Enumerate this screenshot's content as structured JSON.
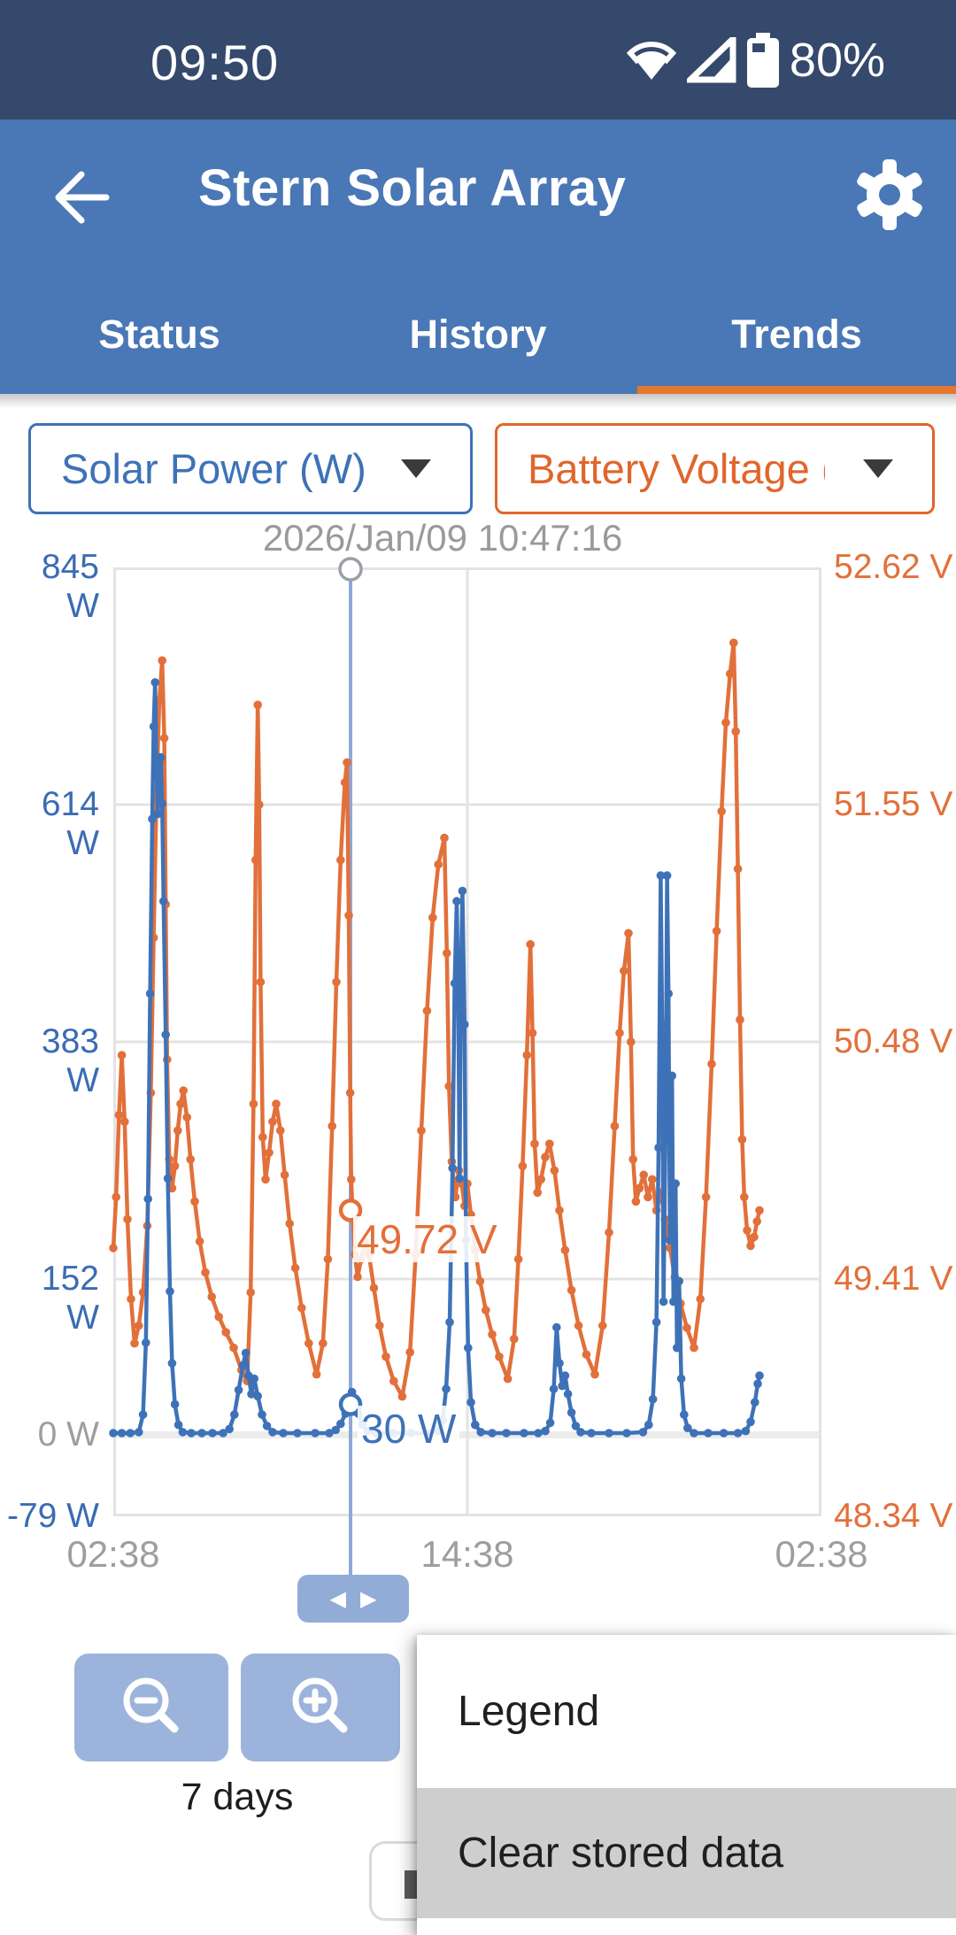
{
  "status_bar": {
    "time": "09:50",
    "battery_percent": "80%"
  },
  "header": {
    "title": "Stern Solar Array"
  },
  "tabs": [
    {
      "label": "Status",
      "active": false
    },
    {
      "label": "History",
      "active": false
    },
    {
      "label": "Trends",
      "active": true
    }
  ],
  "selectors": {
    "left": {
      "label": "Solar Power (W)"
    },
    "right": {
      "label": "Battery Voltage (…"
    }
  },
  "theme": {
    "status_bar_bg": "#35496d",
    "app_bar_bg": "#4a77b5",
    "accent_orange": "#e4772e",
    "control_blue": "#9cb4db",
    "highlight_gray": "#cecece"
  },
  "footer": {
    "range_label": "7 days"
  },
  "menu": {
    "items": [
      {
        "label": "Legend",
        "highlighted": false
      },
      {
        "label": "Clear stored data",
        "highlighted": true
      }
    ]
  },
  "chart_data": {
    "type": "line",
    "x_axis": {
      "ticks": [
        "02:38",
        "14:38",
        "02:38"
      ],
      "grid": true
    },
    "left_axis": {
      "label": "Solar Power (W)",
      "color": "#3a6cb4",
      "range": [
        -79,
        845
      ],
      "ticks": [
        "845 W",
        "614 W",
        "383 W",
        "152 W",
        "-79 W"
      ],
      "zero_label": "0 W"
    },
    "right_axis": {
      "label": "Battery Voltage (V)",
      "color": "#e2703a",
      "range": [
        48.34,
        52.62
      ],
      "ticks": [
        "52.62 V",
        "51.55 V",
        "50.48 V",
        "49.41 V",
        "48.34 V"
      ]
    },
    "cursor": {
      "x_frac": 0.335,
      "datetime": "2026/Jan/09 10:47:16",
      "power_w": 30,
      "power_label": "30 W",
      "voltage_v": 49.72,
      "voltage_label": "49.72 V",
      "line_color": "#8ea8d8"
    },
    "series": [
      {
        "name": "Battery Voltage (V)",
        "axis": "right",
        "color": "#e2703a",
        "points": [
          [
            0.0,
            49.55
          ],
          [
            0.004,
            49.78
          ],
          [
            0.008,
            50.15
          ],
          [
            0.012,
            50.42
          ],
          [
            0.016,
            50.12
          ],
          [
            0.02,
            49.68
          ],
          [
            0.025,
            49.32
          ],
          [
            0.03,
            49.12
          ],
          [
            0.036,
            49.2
          ],
          [
            0.042,
            49.35
          ],
          [
            0.048,
            49.65
          ],
          [
            0.053,
            50.25
          ],
          [
            0.057,
            50.95
          ],
          [
            0.061,
            51.6
          ],
          [
            0.065,
            52.02
          ],
          [
            0.069,
            52.2
          ],
          [
            0.072,
            51.85
          ],
          [
            0.074,
            51.1
          ],
          [
            0.076,
            50.4
          ],
          [
            0.079,
            49.95
          ],
          [
            0.083,
            49.82
          ],
          [
            0.087,
            49.92
          ],
          [
            0.091,
            50.08
          ],
          [
            0.095,
            50.2
          ],
          [
            0.099,
            50.26
          ],
          [
            0.104,
            50.14
          ],
          [
            0.109,
            49.95
          ],
          [
            0.115,
            49.76
          ],
          [
            0.122,
            49.58
          ],
          [
            0.13,
            49.44
          ],
          [
            0.139,
            49.33
          ],
          [
            0.149,
            49.24
          ],
          [
            0.159,
            49.17
          ],
          [
            0.17,
            49.1
          ],
          [
            0.181,
            49.0
          ],
          [
            0.189,
            48.95
          ],
          [
            0.194,
            49.35
          ],
          [
            0.198,
            50.2
          ],
          [
            0.201,
            51.3
          ],
          [
            0.204,
            52.0
          ],
          [
            0.206,
            51.55
          ],
          [
            0.208,
            50.75
          ],
          [
            0.211,
            50.05
          ],
          [
            0.215,
            49.86
          ],
          [
            0.22,
            49.98
          ],
          [
            0.225,
            50.12
          ],
          [
            0.23,
            50.2
          ],
          [
            0.236,
            50.08
          ],
          [
            0.242,
            49.88
          ],
          [
            0.249,
            49.66
          ],
          [
            0.257,
            49.46
          ],
          [
            0.266,
            49.28
          ],
          [
            0.276,
            49.12
          ],
          [
            0.287,
            48.98
          ],
          [
            0.296,
            49.12
          ],
          [
            0.303,
            49.5
          ],
          [
            0.309,
            50.1
          ],
          [
            0.315,
            50.75
          ],
          [
            0.321,
            51.3
          ],
          [
            0.327,
            51.65
          ],
          [
            0.33,
            51.74
          ],
          [
            0.3325,
            51.05
          ],
          [
            0.3345,
            50.25
          ],
          [
            0.336,
            49.86
          ],
          [
            0.338,
            49.7
          ],
          [
            0.341,
            49.52
          ],
          [
            0.345,
            49.42
          ],
          [
            0.35,
            49.5
          ],
          [
            0.355,
            49.58
          ],
          [
            0.361,
            49.52
          ],
          [
            0.368,
            49.37
          ],
          [
            0.376,
            49.2
          ],
          [
            0.385,
            49.06
          ],
          [
            0.396,
            48.95
          ],
          [
            0.408,
            48.88
          ],
          [
            0.419,
            49.08
          ],
          [
            0.427,
            49.52
          ],
          [
            0.435,
            50.08
          ],
          [
            0.443,
            50.62
          ],
          [
            0.451,
            51.04
          ],
          [
            0.459,
            51.28
          ],
          [
            0.4675,
            51.4
          ],
          [
            0.471,
            50.88
          ],
          [
            0.474,
            50.28
          ],
          [
            0.478,
            49.94
          ],
          [
            0.483,
            49.78
          ],
          [
            0.488,
            49.9
          ],
          [
            0.492,
            49.84
          ],
          [
            0.496,
            49.74
          ],
          [
            0.5,
            49.84
          ],
          [
            0.505,
            49.7
          ],
          [
            0.511,
            49.54
          ],
          [
            0.518,
            49.4
          ],
          [
            0.526,
            49.27
          ],
          [
            0.535,
            49.16
          ],
          [
            0.545,
            49.06
          ],
          [
            0.557,
            48.96
          ],
          [
            0.566,
            49.14
          ],
          [
            0.572,
            49.5
          ],
          [
            0.578,
            49.92
          ],
          [
            0.584,
            50.42
          ],
          [
            0.589,
            50.92
          ],
          [
            0.592,
            50.52
          ],
          [
            0.595,
            50.02
          ],
          [
            0.599,
            49.8
          ],
          [
            0.604,
            49.86
          ],
          [
            0.61,
            49.96
          ],
          [
            0.616,
            50.02
          ],
          [
            0.623,
            49.9
          ],
          [
            0.63,
            49.72
          ],
          [
            0.638,
            49.54
          ],
          [
            0.647,
            49.36
          ],
          [
            0.657,
            49.2
          ],
          [
            0.668,
            49.07
          ],
          [
            0.68,
            48.98
          ],
          [
            0.691,
            49.2
          ],
          [
            0.7,
            49.62
          ],
          [
            0.708,
            50.1
          ],
          [
            0.715,
            50.52
          ],
          [
            0.721,
            50.8
          ],
          [
            0.7275,
            50.97
          ],
          [
            0.731,
            50.48
          ],
          [
            0.734,
            49.95
          ],
          [
            0.738,
            49.76
          ],
          [
            0.743,
            49.82
          ],
          [
            0.749,
            49.88
          ],
          [
            0.755,
            49.78
          ],
          [
            0.761,
            49.86
          ],
          [
            0.767,
            49.72
          ],
          [
            0.773,
            49.8
          ],
          [
            0.779,
            49.68
          ],
          [
            0.786,
            49.55
          ],
          [
            0.793,
            49.42
          ],
          [
            0.801,
            49.3
          ],
          [
            0.81,
            49.19
          ],
          [
            0.82,
            49.1
          ],
          [
            0.829,
            49.32
          ],
          [
            0.837,
            49.78
          ],
          [
            0.845,
            50.38
          ],
          [
            0.852,
            50.98
          ],
          [
            0.859,
            51.52
          ],
          [
            0.865,
            51.92
          ],
          [
            0.871,
            52.14
          ],
          [
            0.876,
            52.28
          ],
          [
            0.879,
            51.88
          ],
          [
            0.882,
            51.26
          ],
          [
            0.885,
            50.58
          ],
          [
            0.888,
            50.04
          ],
          [
            0.891,
            49.78
          ],
          [
            0.895,
            49.63
          ],
          [
            0.9,
            49.56
          ],
          [
            0.905,
            49.6
          ],
          [
            0.909,
            49.67
          ],
          [
            0.9125,
            49.72
          ]
        ]
      },
      {
        "name": "Solar Power (W)",
        "axis": "left",
        "color": "#3e72b8",
        "points": [
          [
            0.0,
            2
          ],
          [
            0.012,
            2
          ],
          [
            0.024,
            2
          ],
          [
            0.036,
            3
          ],
          [
            0.042,
            20
          ],
          [
            0.046,
            90
          ],
          [
            0.049,
            230
          ],
          [
            0.052,
            430
          ],
          [
            0.055,
            600
          ],
          [
            0.057,
            690
          ],
          [
            0.059,
            733
          ],
          [
            0.061,
            650
          ],
          [
            0.063,
            605
          ],
          [
            0.065,
            655
          ],
          [
            0.067,
            660
          ],
          [
            0.069,
            615
          ],
          [
            0.071,
            520
          ],
          [
            0.074,
            390
          ],
          [
            0.077,
            250
          ],
          [
            0.08,
            140
          ],
          [
            0.083,
            70
          ],
          [
            0.087,
            30
          ],
          [
            0.092,
            10
          ],
          [
            0.098,
            3
          ],
          [
            0.11,
            2
          ],
          [
            0.125,
            2
          ],
          [
            0.14,
            2
          ],
          [
            0.155,
            2
          ],
          [
            0.164,
            6
          ],
          [
            0.171,
            20
          ],
          [
            0.177,
            44
          ],
          [
            0.183,
            68
          ],
          [
            0.187,
            80
          ],
          [
            0.191,
            58
          ],
          [
            0.195,
            40
          ],
          [
            0.199,
            55
          ],
          [
            0.204,
            38
          ],
          [
            0.21,
            20
          ],
          [
            0.217,
            9
          ],
          [
            0.225,
            3
          ],
          [
            0.24,
            2
          ],
          [
            0.26,
            2
          ],
          [
            0.285,
            2
          ],
          [
            0.305,
            2
          ],
          [
            0.314,
            5
          ],
          [
            0.321,
            11
          ],
          [
            0.328,
            21
          ],
          [
            0.333,
            32
          ],
          [
            0.337,
            42
          ],
          [
            0.341,
            33
          ],
          [
            0.346,
            21
          ],
          [
            0.352,
            10
          ],
          [
            0.359,
            4
          ],
          [
            0.372,
            2
          ],
          [
            0.395,
            2
          ],
          [
            0.42,
            2
          ],
          [
            0.445,
            2
          ],
          [
            0.458,
            4
          ],
          [
            0.465,
            14
          ],
          [
            0.47,
            45
          ],
          [
            0.475,
            110
          ],
          [
            0.479,
            260
          ],
          [
            0.482,
            440
          ],
          [
            0.485,
            520
          ],
          [
            0.487,
            430
          ],
          [
            0.489,
            250
          ],
          [
            0.491,
            450
          ],
          [
            0.493,
            530
          ],
          [
            0.496,
            400
          ],
          [
            0.498,
            190
          ],
          [
            0.501,
            85
          ],
          [
            0.505,
            32
          ],
          [
            0.511,
            10
          ],
          [
            0.519,
            3
          ],
          [
            0.535,
            2
          ],
          [
            0.555,
            2
          ],
          [
            0.58,
            2
          ],
          [
            0.6,
            2
          ],
          [
            0.61,
            4
          ],
          [
            0.617,
            12
          ],
          [
            0.622,
            45
          ],
          [
            0.626,
            105
          ],
          [
            0.63,
            70
          ],
          [
            0.634,
            48
          ],
          [
            0.638,
            58
          ],
          [
            0.642,
            40
          ],
          [
            0.647,
            22
          ],
          [
            0.653,
            9
          ],
          [
            0.66,
            3
          ],
          [
            0.675,
            2
          ],
          [
            0.7,
            2
          ],
          [
            0.725,
            2
          ],
          [
            0.748,
            3
          ],
          [
            0.756,
            10
          ],
          [
            0.762,
            35
          ],
          [
            0.767,
            110
          ],
          [
            0.77,
            280
          ],
          [
            0.773,
            545
          ],
          [
            0.775,
            400
          ],
          [
            0.777,
            130
          ],
          [
            0.78,
            310
          ],
          [
            0.782,
            545
          ],
          [
            0.784,
            430
          ],
          [
            0.786,
            190
          ],
          [
            0.789,
            350
          ],
          [
            0.791,
            130
          ],
          [
            0.794,
            245
          ],
          [
            0.796,
            85
          ],
          [
            0.799,
            150
          ],
          [
            0.802,
            55
          ],
          [
            0.806,
            20
          ],
          [
            0.811,
            7
          ],
          [
            0.82,
            2
          ],
          [
            0.84,
            2
          ],
          [
            0.862,
            2
          ],
          [
            0.882,
            2
          ],
          [
            0.893,
            4
          ],
          [
            0.9,
            13
          ],
          [
            0.906,
            32
          ],
          [
            0.91,
            50
          ],
          [
            0.9125,
            58
          ]
        ]
      }
    ]
  }
}
